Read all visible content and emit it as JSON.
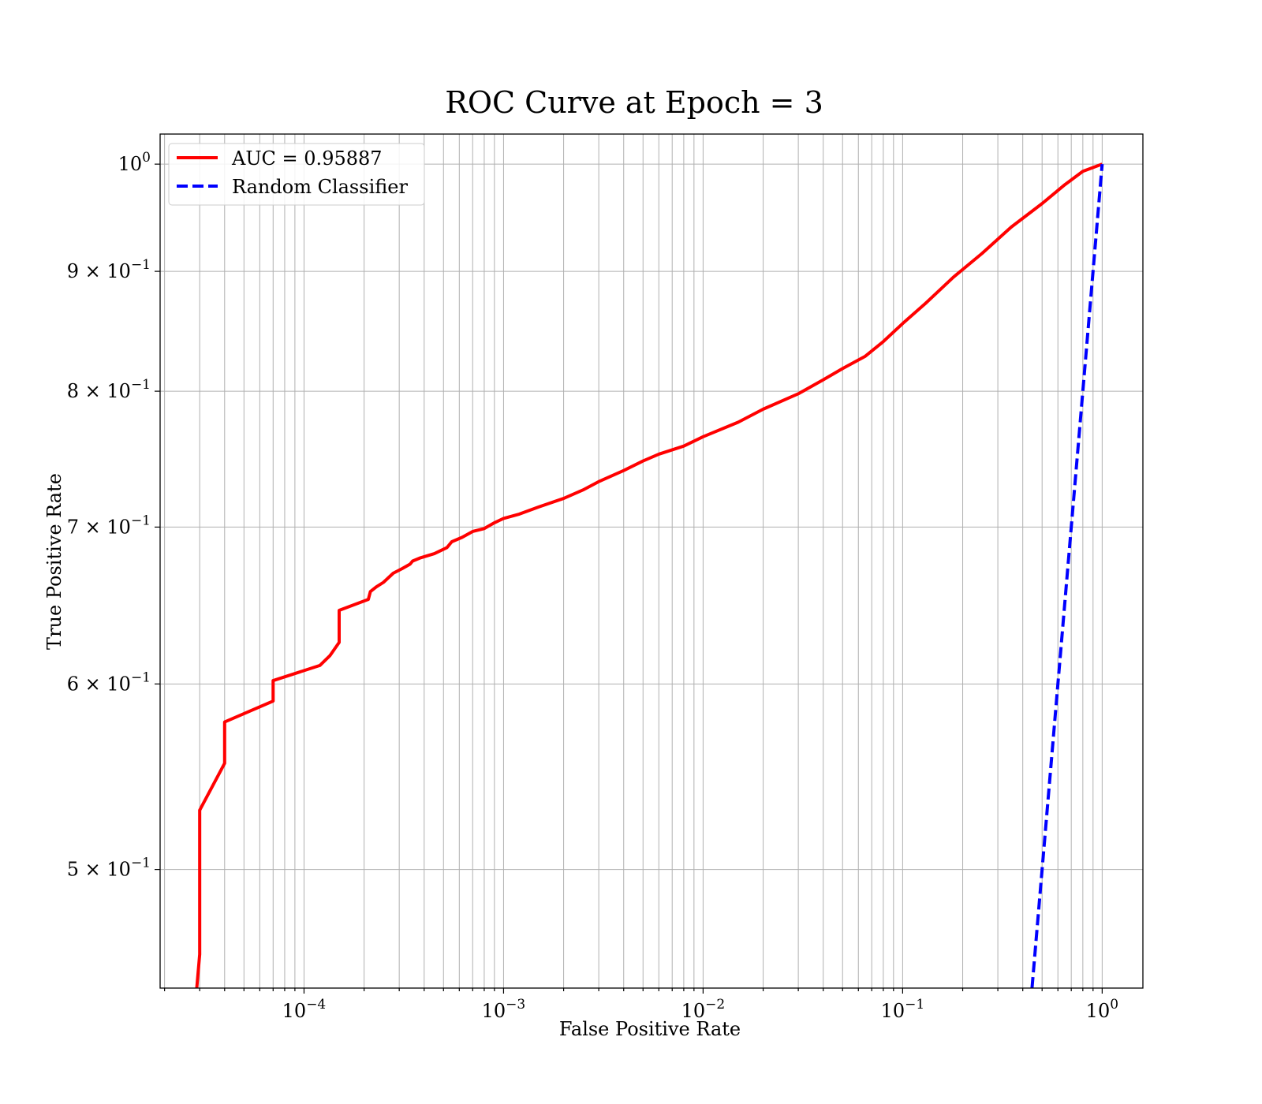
{
  "chart_data": {
    "type": "line",
    "title": "ROC Curve at Epoch = 3",
    "xlabel": "False Positive Rate",
    "ylabel": "True Positive Rate",
    "xscale": "log",
    "yscale": "log",
    "xlim": [
      1.9e-05,
      1.6
    ],
    "ylim": [
      0.445,
      1.03
    ],
    "grid": true,
    "legend_position": "top-left",
    "x_ticks": [
      {
        "value": 0.0001,
        "base": "10",
        "exp": "−4"
      },
      {
        "value": 0.001,
        "base": "10",
        "exp": "−3"
      },
      {
        "value": 0.01,
        "base": "10",
        "exp": "−2"
      },
      {
        "value": 0.1,
        "base": "10",
        "exp": "−1"
      },
      {
        "value": 1,
        "base": "10",
        "exp": "0"
      }
    ],
    "y_ticks": [
      {
        "value": 0.5,
        "base": "5 × 10",
        "exp": "−1"
      },
      {
        "value": 0.6,
        "base": "6 × 10",
        "exp": "−1"
      },
      {
        "value": 0.7,
        "base": "7 × 10",
        "exp": "−1"
      },
      {
        "value": 0.8,
        "base": "8 × 10",
        "exp": "−1"
      },
      {
        "value": 0.9,
        "base": "9 × 10",
        "exp": "−1"
      },
      {
        "value": 1.0,
        "base": "10",
        "exp": "0"
      }
    ],
    "series": [
      {
        "name": "AUC = 0.95887",
        "color": "#ff0000",
        "style": "solid",
        "x": [
          2.9e-05,
          3e-05,
          3e-05,
          3e-05,
          4e-05,
          4e-05,
          7e-05,
          7e-05,
          0.00012,
          0.000135,
          0.00015,
          0.00015,
          0.00021,
          0.000215,
          0.00023,
          0.00025,
          0.00028,
          0.00031,
          0.00034,
          0.00035,
          0.00038,
          0.00045,
          0.00052,
          0.00055,
          0.00062,
          0.0007,
          0.0008,
          0.0009,
          0.001,
          0.0012,
          0.0015,
          0.002,
          0.0025,
          0.003,
          0.004,
          0.005,
          0.006,
          0.008,
          0.01,
          0.015,
          0.02,
          0.03,
          0.04,
          0.05,
          0.065,
          0.08,
          0.1,
          0.13,
          0.18,
          0.25,
          0.35,
          0.5,
          0.65,
          0.8,
          1.0
        ],
        "y": [
          0.445,
          0.46,
          0.53,
          0.53,
          0.555,
          0.578,
          0.59,
          0.602,
          0.611,
          0.617,
          0.625,
          0.645,
          0.652,
          0.657,
          0.66,
          0.663,
          0.669,
          0.672,
          0.675,
          0.677,
          0.679,
          0.682,
          0.686,
          0.69,
          0.693,
          0.697,
          0.699,
          0.703,
          0.706,
          0.709,
          0.714,
          0.72,
          0.726,
          0.732,
          0.74,
          0.747,
          0.752,
          0.758,
          0.765,
          0.776,
          0.786,
          0.798,
          0.809,
          0.818,
          0.828,
          0.84,
          0.855,
          0.872,
          0.895,
          0.916,
          0.94,
          0.962,
          0.98,
          0.993,
          1.0
        ]
      },
      {
        "name": "Random Classifier",
        "color": "#0000ff",
        "style": "dashed",
        "x": [
          0.445,
          0.5,
          0.6,
          0.7,
          0.8,
          0.9,
          1.0
        ],
        "y": [
          0.445,
          0.5,
          0.6,
          0.7,
          0.8,
          0.9,
          1.0
        ]
      }
    ]
  }
}
